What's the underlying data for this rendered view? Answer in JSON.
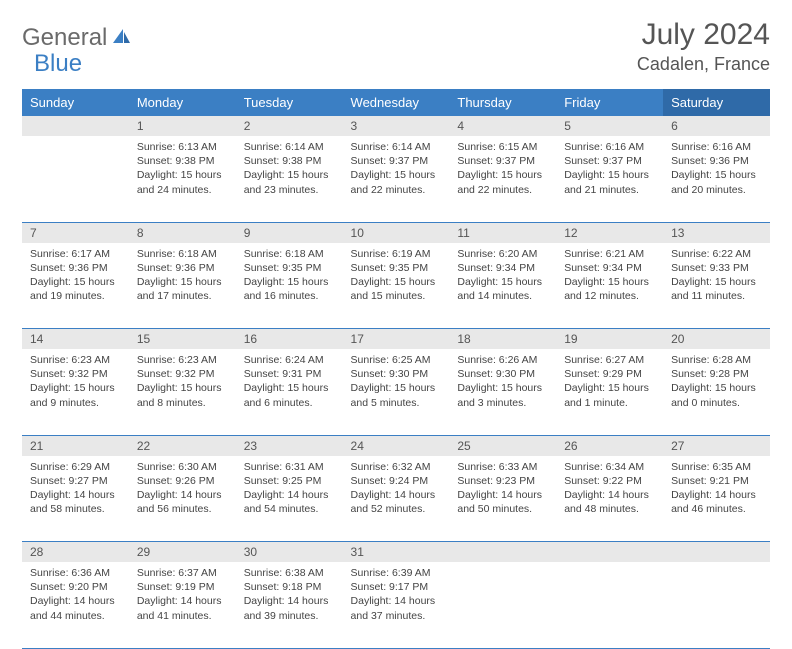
{
  "brand": {
    "part1": "General",
    "part2": "Blue",
    "text_color": "#6a6a6a",
    "accent_color": "#3b7fc4"
  },
  "title": "July 2024",
  "location": "Cadalen, France",
  "colors": {
    "header_bg": "#3b7fc4",
    "header_sat_bg": "#2f6aa8",
    "daynum_bg": "#e8e8e8",
    "border": "#3b7fc4",
    "text": "#444444",
    "title_text": "#555555"
  },
  "weekdays": [
    "Sunday",
    "Monday",
    "Tuesday",
    "Wednesday",
    "Thursday",
    "Friday",
    "Saturday"
  ],
  "weeks": [
    [
      null,
      {
        "n": "1",
        "sr": "6:13 AM",
        "ss": "9:38 PM",
        "dl": "15 hours and 24 minutes."
      },
      {
        "n": "2",
        "sr": "6:14 AM",
        "ss": "9:38 PM",
        "dl": "15 hours and 23 minutes."
      },
      {
        "n": "3",
        "sr": "6:14 AM",
        "ss": "9:37 PM",
        "dl": "15 hours and 22 minutes."
      },
      {
        "n": "4",
        "sr": "6:15 AM",
        "ss": "9:37 PM",
        "dl": "15 hours and 22 minutes."
      },
      {
        "n": "5",
        "sr": "6:16 AM",
        "ss": "9:37 PM",
        "dl": "15 hours and 21 minutes."
      },
      {
        "n": "6",
        "sr": "6:16 AM",
        "ss": "9:36 PM",
        "dl": "15 hours and 20 minutes."
      }
    ],
    [
      {
        "n": "7",
        "sr": "6:17 AM",
        "ss": "9:36 PM",
        "dl": "15 hours and 19 minutes."
      },
      {
        "n": "8",
        "sr": "6:18 AM",
        "ss": "9:36 PM",
        "dl": "15 hours and 17 minutes."
      },
      {
        "n": "9",
        "sr": "6:18 AM",
        "ss": "9:35 PM",
        "dl": "15 hours and 16 minutes."
      },
      {
        "n": "10",
        "sr": "6:19 AM",
        "ss": "9:35 PM",
        "dl": "15 hours and 15 minutes."
      },
      {
        "n": "11",
        "sr": "6:20 AM",
        "ss": "9:34 PM",
        "dl": "15 hours and 14 minutes."
      },
      {
        "n": "12",
        "sr": "6:21 AM",
        "ss": "9:34 PM",
        "dl": "15 hours and 12 minutes."
      },
      {
        "n": "13",
        "sr": "6:22 AM",
        "ss": "9:33 PM",
        "dl": "15 hours and 11 minutes."
      }
    ],
    [
      {
        "n": "14",
        "sr": "6:23 AM",
        "ss": "9:32 PM",
        "dl": "15 hours and 9 minutes."
      },
      {
        "n": "15",
        "sr": "6:23 AM",
        "ss": "9:32 PM",
        "dl": "15 hours and 8 minutes."
      },
      {
        "n": "16",
        "sr": "6:24 AM",
        "ss": "9:31 PM",
        "dl": "15 hours and 6 minutes."
      },
      {
        "n": "17",
        "sr": "6:25 AM",
        "ss": "9:30 PM",
        "dl": "15 hours and 5 minutes."
      },
      {
        "n": "18",
        "sr": "6:26 AM",
        "ss": "9:30 PM",
        "dl": "15 hours and 3 minutes."
      },
      {
        "n": "19",
        "sr": "6:27 AM",
        "ss": "9:29 PM",
        "dl": "15 hours and 1 minute."
      },
      {
        "n": "20",
        "sr": "6:28 AM",
        "ss": "9:28 PM",
        "dl": "15 hours and 0 minutes."
      }
    ],
    [
      {
        "n": "21",
        "sr": "6:29 AM",
        "ss": "9:27 PM",
        "dl": "14 hours and 58 minutes."
      },
      {
        "n": "22",
        "sr": "6:30 AM",
        "ss": "9:26 PM",
        "dl": "14 hours and 56 minutes."
      },
      {
        "n": "23",
        "sr": "6:31 AM",
        "ss": "9:25 PM",
        "dl": "14 hours and 54 minutes."
      },
      {
        "n": "24",
        "sr": "6:32 AM",
        "ss": "9:24 PM",
        "dl": "14 hours and 52 minutes."
      },
      {
        "n": "25",
        "sr": "6:33 AM",
        "ss": "9:23 PM",
        "dl": "14 hours and 50 minutes."
      },
      {
        "n": "26",
        "sr": "6:34 AM",
        "ss": "9:22 PM",
        "dl": "14 hours and 48 minutes."
      },
      {
        "n": "27",
        "sr": "6:35 AM",
        "ss": "9:21 PM",
        "dl": "14 hours and 46 minutes."
      }
    ],
    [
      {
        "n": "28",
        "sr": "6:36 AM",
        "ss": "9:20 PM",
        "dl": "14 hours and 44 minutes."
      },
      {
        "n": "29",
        "sr": "6:37 AM",
        "ss": "9:19 PM",
        "dl": "14 hours and 41 minutes."
      },
      {
        "n": "30",
        "sr": "6:38 AM",
        "ss": "9:18 PM",
        "dl": "14 hours and 39 minutes."
      },
      {
        "n": "31",
        "sr": "6:39 AM",
        "ss": "9:17 PM",
        "dl": "14 hours and 37 minutes."
      },
      null,
      null,
      null
    ]
  ],
  "labels": {
    "sunrise_prefix": "Sunrise: ",
    "sunset_prefix": "Sunset: ",
    "daylight_prefix": "Daylight: "
  }
}
